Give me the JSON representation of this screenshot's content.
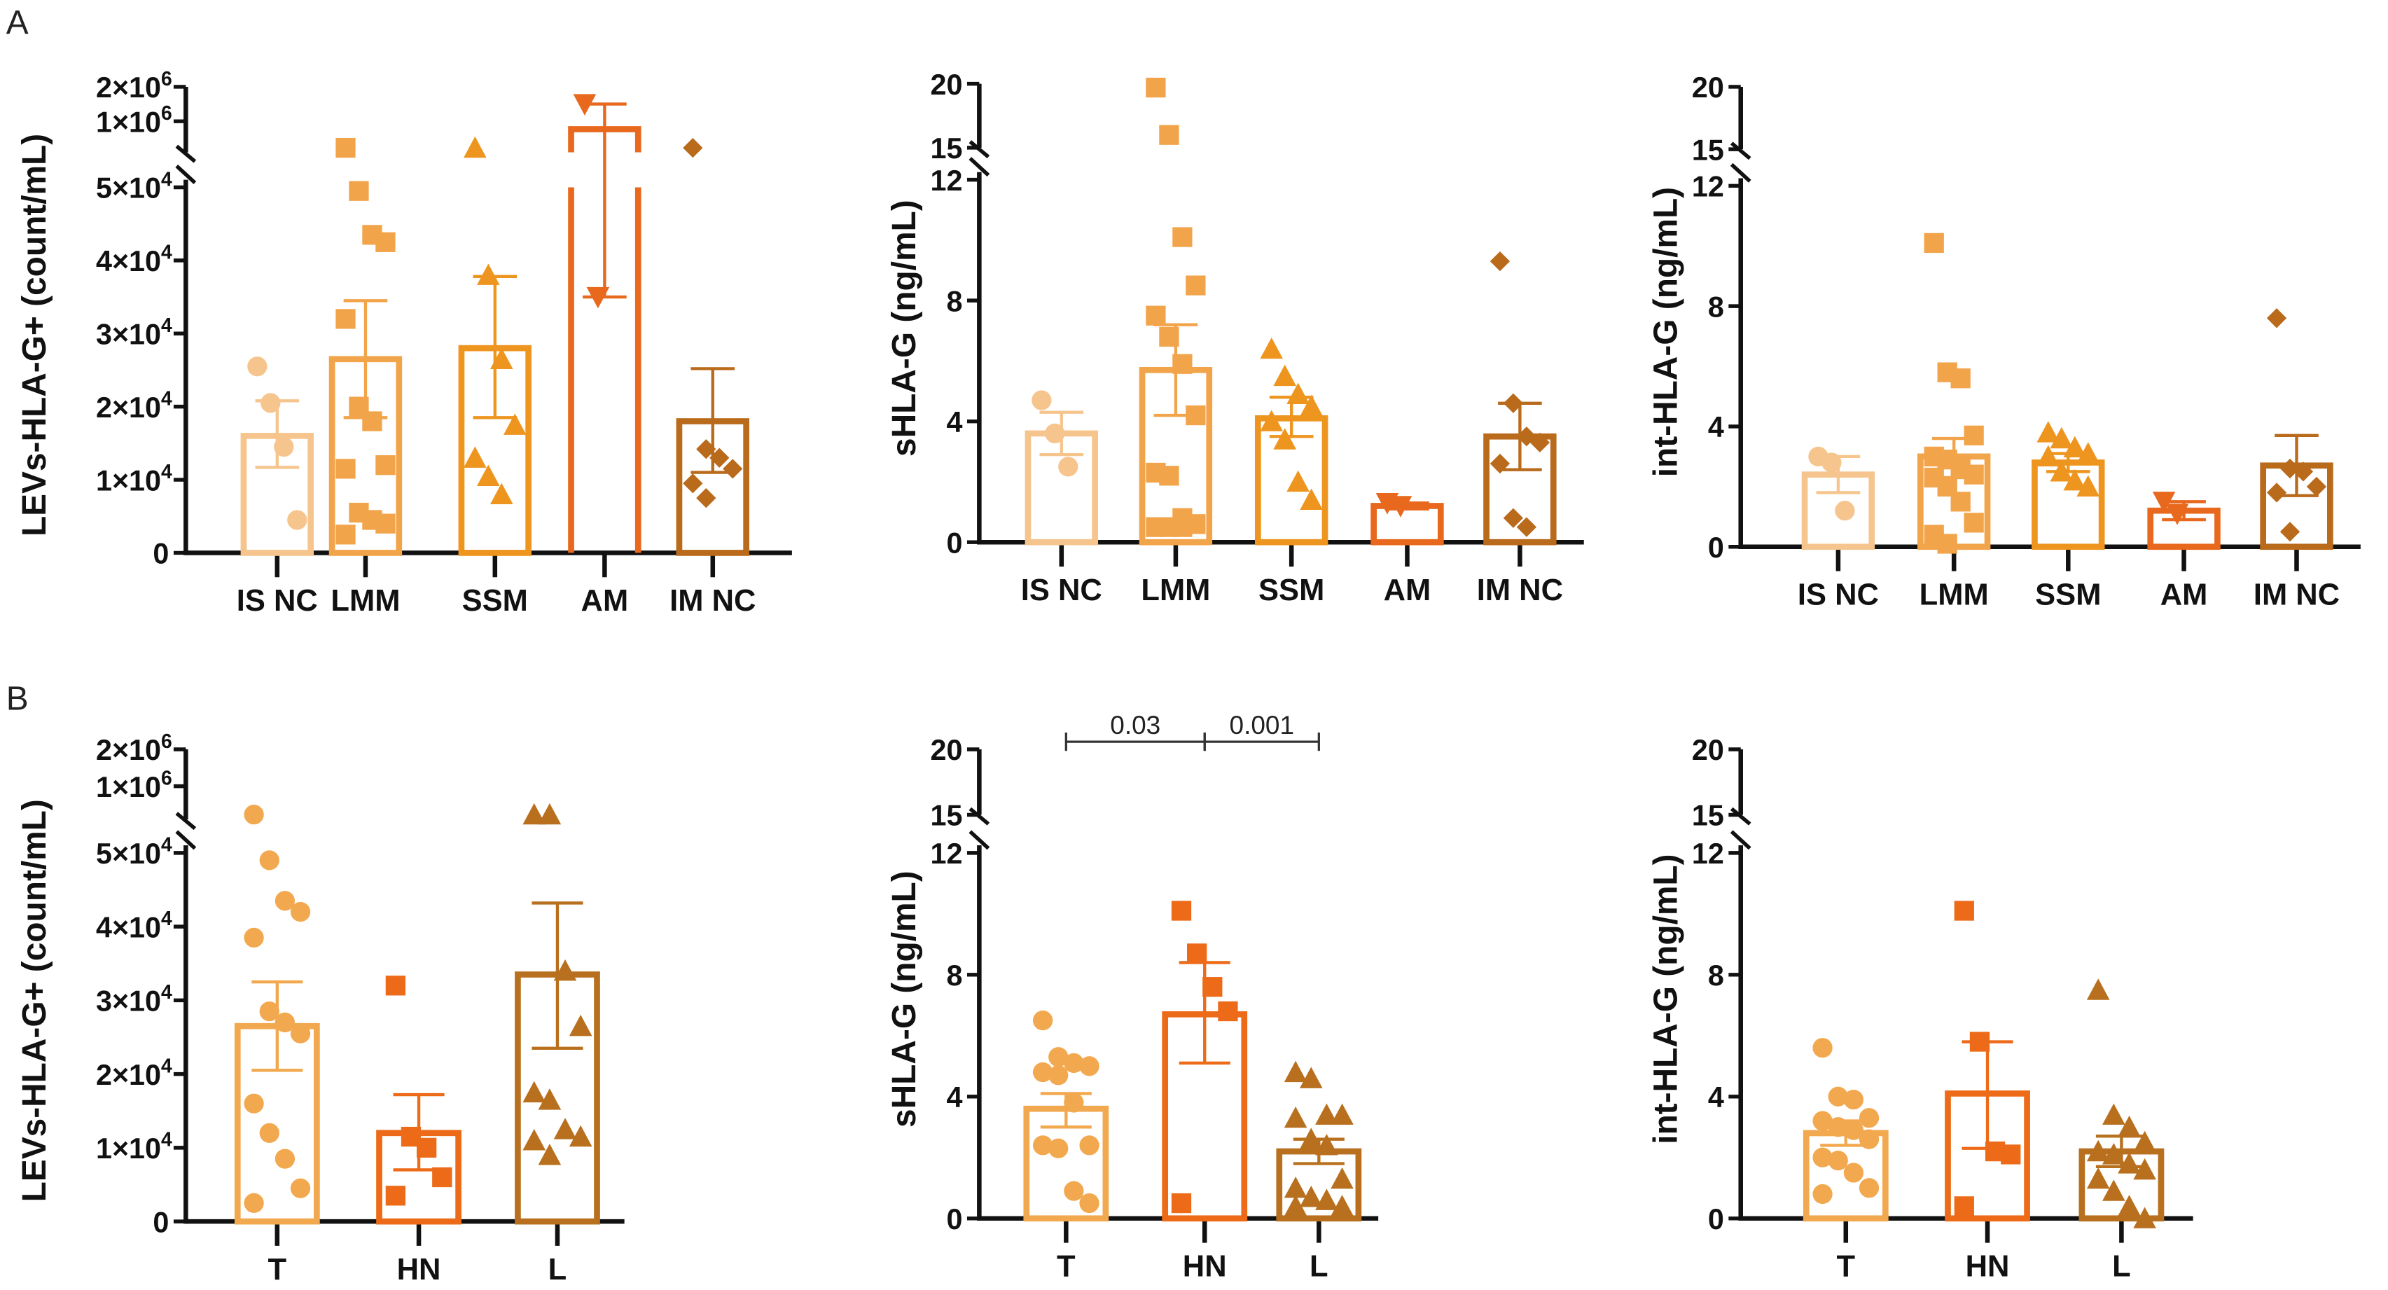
{
  "figure_labels": [
    "A",
    "B"
  ],
  "chart_data": [
    {
      "id": "A1",
      "type": "bar",
      "row": "A",
      "ylabel": "LEVs-HLA-G+ (count/mL)",
      "categories": [
        "IS NC",
        "LMM",
        "SSM",
        "AM",
        "IM NC"
      ],
      "markers": [
        "circle",
        "square",
        "triangle-up",
        "triangle-down",
        "diamond"
      ],
      "colors": [
        "#f6c58d",
        "#f2a44a",
        "#ee951f",
        "#e8681e",
        "#b96a1b"
      ],
      "y_axis": {
        "broken": true,
        "lower_range": [
          0,
          50000
        ],
        "upper_range": [
          100000,
          2000000
        ],
        "lower_ticks": [
          {
            "v": 0,
            "t": "0"
          },
          {
            "v": 10000,
            "t": "1×10",
            "e": "4"
          },
          {
            "v": 20000,
            "t": "2×10",
            "e": "4"
          },
          {
            "v": 30000,
            "t": "3×10",
            "e": "4"
          },
          {
            "v": 40000,
            "t": "4×10",
            "e": "4"
          },
          {
            "v": 50000,
            "t": "5×10",
            "e": "4"
          }
        ],
        "upper_ticks": [
          {
            "v": 1000000,
            "t": "1×10",
            "e": "6"
          },
          {
            "v": 2000000,
            "t": "2×10",
            "e": "6"
          }
        ]
      },
      "series": [
        {
          "name": "IS NC",
          "mean": 16000,
          "sem": [
            11700,
            20800
          ],
          "points": [
            25500,
            20500,
            14500,
            4500
          ]
        },
        {
          "name": "LMM",
          "mean": 26500,
          "sem": [
            18500,
            34500
          ],
          "points": [
            230000,
            49500,
            43500,
            42500,
            32000,
            20000,
            18000,
            12000,
            11500,
            5500,
            4500,
            4000,
            2500
          ]
        },
        {
          "name": "SSM",
          "mean": 28000,
          "sem": [
            18500,
            37800
          ],
          "points": [
            230000,
            38000,
            26500,
            17500,
            13000,
            10500,
            8000
          ]
        },
        {
          "name": "AM",
          "mean": 770000,
          "sem": [
            35000,
            1500000
          ],
          "points": [
            1500000,
            35000
          ]
        },
        {
          "name": "IM NC",
          "mean": 18000,
          "sem": [
            11000,
            25200
          ],
          "points": [
            230000,
            14200,
            13000,
            11500,
            9500,
            7500
          ]
        }
      ]
    },
    {
      "id": "A2",
      "type": "bar",
      "row": "A",
      "ylabel": "sHLA-G (ng/mL)",
      "categories": [
        "IS NC",
        "LMM",
        "SSM",
        "AM",
        "IM NC"
      ],
      "markers": [
        "circle",
        "square",
        "triangle-up",
        "triangle-down",
        "diamond"
      ],
      "colors": [
        "#f6c58d",
        "#f2a44a",
        "#ee951f",
        "#e8681e",
        "#b96a1b"
      ],
      "y_axis": {
        "broken": true,
        "lower_range": [
          0,
          12
        ],
        "upper_range": [
          15,
          20
        ],
        "lower_ticks": [
          {
            "v": 0,
            "t": "0"
          },
          {
            "v": 4,
            "t": "4"
          },
          {
            "v": 8,
            "t": "8"
          },
          {
            "v": 12,
            "t": "12"
          }
        ],
        "upper_ticks": [
          {
            "v": 15,
            "t": "15"
          },
          {
            "v": 20,
            "t": "20"
          }
        ]
      },
      "series": [
        {
          "name": "IS NC",
          "mean": 3.6,
          "sem": [
            2.9,
            4.3
          ],
          "points": [
            4.7,
            3.6,
            2.5
          ]
        },
        {
          "name": "LMM",
          "mean": 5.7,
          "sem": [
            4.2,
            7.2
          ],
          "points": [
            19.7,
            16,
            10.1,
            8.5,
            7.5,
            6.8,
            5.9,
            4.2,
            2.3,
            2.2,
            0.8,
            0.6,
            0.5,
            0.5,
            0.5
          ]
        },
        {
          "name": "SSM",
          "mean": 4.1,
          "sem": [
            3.5,
            4.8
          ],
          "points": [
            6.4,
            5.5,
            4.9,
            4.5,
            4.0,
            3.4,
            2.0,
            1.4
          ]
        },
        {
          "name": "AM",
          "mean": 1.2,
          "sem": [
            1.1,
            1.3
          ],
          "points": [
            1.3,
            1.2
          ]
        },
        {
          "name": "IM NC",
          "mean": 3.5,
          "sem": [
            2.4,
            4.6
          ],
          "points": [
            9.3,
            4.6,
            3.5,
            3.3,
            2.6,
            0.8,
            0.5
          ]
        }
      ]
    },
    {
      "id": "A3",
      "type": "bar",
      "row": "A",
      "ylabel": "int-HLA-G (ng/mL)",
      "categories": [
        "IS NC",
        "LMM",
        "SSM",
        "AM",
        "IM NC"
      ],
      "markers": [
        "circle",
        "square",
        "triangle-up",
        "triangle-down",
        "diamond"
      ],
      "colors": [
        "#f6c58d",
        "#f2a44a",
        "#ee951f",
        "#e8681e",
        "#b96a1b"
      ],
      "y_axis": {
        "broken": true,
        "lower_range": [
          0,
          12
        ],
        "upper_range": [
          15,
          20
        ],
        "lower_ticks": [
          {
            "v": 0,
            "t": "0"
          },
          {
            "v": 4,
            "t": "4"
          },
          {
            "v": 8,
            "t": "8"
          },
          {
            "v": 12,
            "t": "12"
          }
        ],
        "upper_ticks": [
          {
            "v": 15,
            "t": "15"
          },
          {
            "v": 20,
            "t": "20"
          }
        ]
      },
      "series": [
        {
          "name": "IS NC",
          "mean": 2.4,
          "sem": [
            1.8,
            3.0
          ],
          "points": [
            3.0,
            2.8,
            1.2
          ]
        },
        {
          "name": "LMM",
          "mean": 3.0,
          "sem": [
            2.3,
            3.6
          ],
          "points": [
            10.1,
            5.8,
            5.6,
            3.7,
            3.0,
            2.9,
            2.6,
            2.4,
            2.3,
            2.0,
            1.5,
            0.8,
            0.4,
            0.1
          ]
        },
        {
          "name": "SSM",
          "mean": 2.8,
          "sem": [
            2.5,
            3.1
          ],
          "points": [
            3.8,
            3.6,
            3.3,
            3.1,
            3.0,
            2.5,
            2.2,
            2.0
          ]
        },
        {
          "name": "AM",
          "mean": 1.2,
          "sem": [
            0.9,
            1.5
          ],
          "points": [
            1.5,
            1.1
          ]
        },
        {
          "name": "IM NC",
          "mean": 2.7,
          "sem": [
            1.7,
            3.7
          ],
          "points": [
            7.6,
            2.6,
            2.5,
            2.0,
            1.8,
            0.5
          ]
        }
      ]
    },
    {
      "id": "B1",
      "type": "bar",
      "row": "B",
      "ylabel": "LEVs-HLA-G+ (count/mL)",
      "categories": [
        "T",
        "HN",
        "L"
      ],
      "markers": [
        "circle",
        "square",
        "triangle-up"
      ],
      "colors": [
        "#f2a84e",
        "#ec6a18",
        "#b8701f"
      ],
      "y_axis": {
        "broken": true,
        "lower_range": [
          0,
          50000
        ],
        "upper_range": [
          100000,
          2000000
        ],
        "lower_ticks": [
          {
            "v": 0,
            "t": "0"
          },
          {
            "v": 10000,
            "t": "1×10",
            "e": "4"
          },
          {
            "v": 20000,
            "t": "2×10",
            "e": "4"
          },
          {
            "v": 30000,
            "t": "3×10",
            "e": "4"
          },
          {
            "v": 40000,
            "t": "4×10",
            "e": "4"
          },
          {
            "v": 50000,
            "t": "5×10",
            "e": "4"
          }
        ],
        "upper_ticks": [
          {
            "v": 1000000,
            "t": "1×10",
            "e": "6"
          },
          {
            "v": 2000000,
            "t": "2×10",
            "e": "6"
          }
        ]
      },
      "series": [
        {
          "name": "T",
          "mean": 26500,
          "sem": [
            20500,
            32500
          ],
          "points": [
            230000,
            49000,
            43500,
            42000,
            38500,
            28500,
            27000,
            25500,
            16000,
            12000,
            8500,
            4500,
            2500
          ]
        },
        {
          "name": "HN",
          "mean": 12000,
          "sem": [
            7000,
            17200
          ],
          "points": [
            32000,
            11500,
            10000,
            6000,
            3500
          ]
        },
        {
          "name": "L",
          "mean": 33500,
          "sem": [
            23500,
            43200
          ],
          "points": [
            230000,
            230000,
            34000,
            26500,
            17500,
            16500,
            12500,
            11500,
            11000,
            9000
          ]
        }
      ]
    },
    {
      "id": "B2",
      "type": "bar",
      "row": "B",
      "ylabel": "sHLA-G (ng/mL)",
      "categories": [
        "T",
        "HN",
        "L"
      ],
      "markers": [
        "circle",
        "square",
        "triangle-up"
      ],
      "colors": [
        "#f2a84e",
        "#ec6a18",
        "#b8701f"
      ],
      "y_axis": {
        "broken": true,
        "lower_range": [
          0,
          12
        ],
        "upper_range": [
          15,
          20
        ],
        "lower_ticks": [
          {
            "v": 0,
            "t": "0"
          },
          {
            "v": 4,
            "t": "4"
          },
          {
            "v": 8,
            "t": "8"
          },
          {
            "v": 12,
            "t": "12"
          }
        ],
        "upper_ticks": [
          {
            "v": 15,
            "t": "15"
          },
          {
            "v": 20,
            "t": "20"
          }
        ]
      },
      "annotations": [
        {
          "from": "T",
          "to": "HN",
          "label": "0.03"
        },
        {
          "from": "HN",
          "to": "L",
          "label": "0.001"
        }
      ],
      "series": [
        {
          "name": "T",
          "mean": 3.6,
          "sem": [
            3.0,
            4.1
          ],
          "points": [
            6.5,
            5.3,
            5.1,
            5.0,
            4.8,
            4.7,
            3.8,
            2.4,
            2.4,
            2.3,
            0.9,
            0.5
          ]
        },
        {
          "name": "HN",
          "mean": 6.7,
          "sem": [
            5.1,
            8.4
          ],
          "points": [
            10.1,
            8.7,
            7.6,
            6.8,
            0.5
          ]
        },
        {
          "name": "L",
          "mean": 2.2,
          "sem": [
            1.8,
            2.6
          ],
          "points": [
            4.8,
            4.6,
            3.4,
            3.4,
            3.3,
            2.6,
            2.4,
            1.3,
            1.0,
            0.7,
            0.6,
            0.4,
            0.4
          ]
        }
      ]
    },
    {
      "id": "B3",
      "type": "bar",
      "row": "B",
      "ylabel": "int-HLA-G (ng/mL)",
      "categories": [
        "T",
        "HN",
        "L"
      ],
      "markers": [
        "circle",
        "square",
        "triangle-up"
      ],
      "colors": [
        "#f2a84e",
        "#ec6a18",
        "#b8701f"
      ],
      "y_axis": {
        "broken": true,
        "lower_range": [
          0,
          12
        ],
        "upper_range": [
          15,
          20
        ],
        "lower_ticks": [
          {
            "v": 0,
            "t": "0"
          },
          {
            "v": 4,
            "t": "4"
          },
          {
            "v": 8,
            "t": "8"
          },
          {
            "v": 12,
            "t": "12"
          }
        ],
        "upper_ticks": [
          {
            "v": 15,
            "t": "15"
          },
          {
            "v": 20,
            "t": "20"
          }
        ]
      },
      "series": [
        {
          "name": "T",
          "mean": 2.8,
          "sem": [
            2.4,
            3.2
          ],
          "points": [
            5.6,
            4.0,
            3.9,
            3.3,
            3.2,
            3.0,
            2.9,
            2.6,
            2.0,
            1.9,
            1.5,
            1.0,
            0.8
          ]
        },
        {
          "name": "HN",
          "mean": 4.1,
          "sem": [
            2.3,
            5.8
          ],
          "points": [
            10.1,
            5.8,
            2.2,
            2.1,
            0.4
          ]
        },
        {
          "name": "L",
          "mean": 2.2,
          "sem": [
            1.7,
            2.7
          ],
          "points": [
            7.5,
            3.4,
            3.0,
            2.5,
            2.2,
            2.1,
            1.8,
            1.6,
            1.3,
            0.9,
            0.4,
            0.0
          ]
        }
      ]
    }
  ]
}
